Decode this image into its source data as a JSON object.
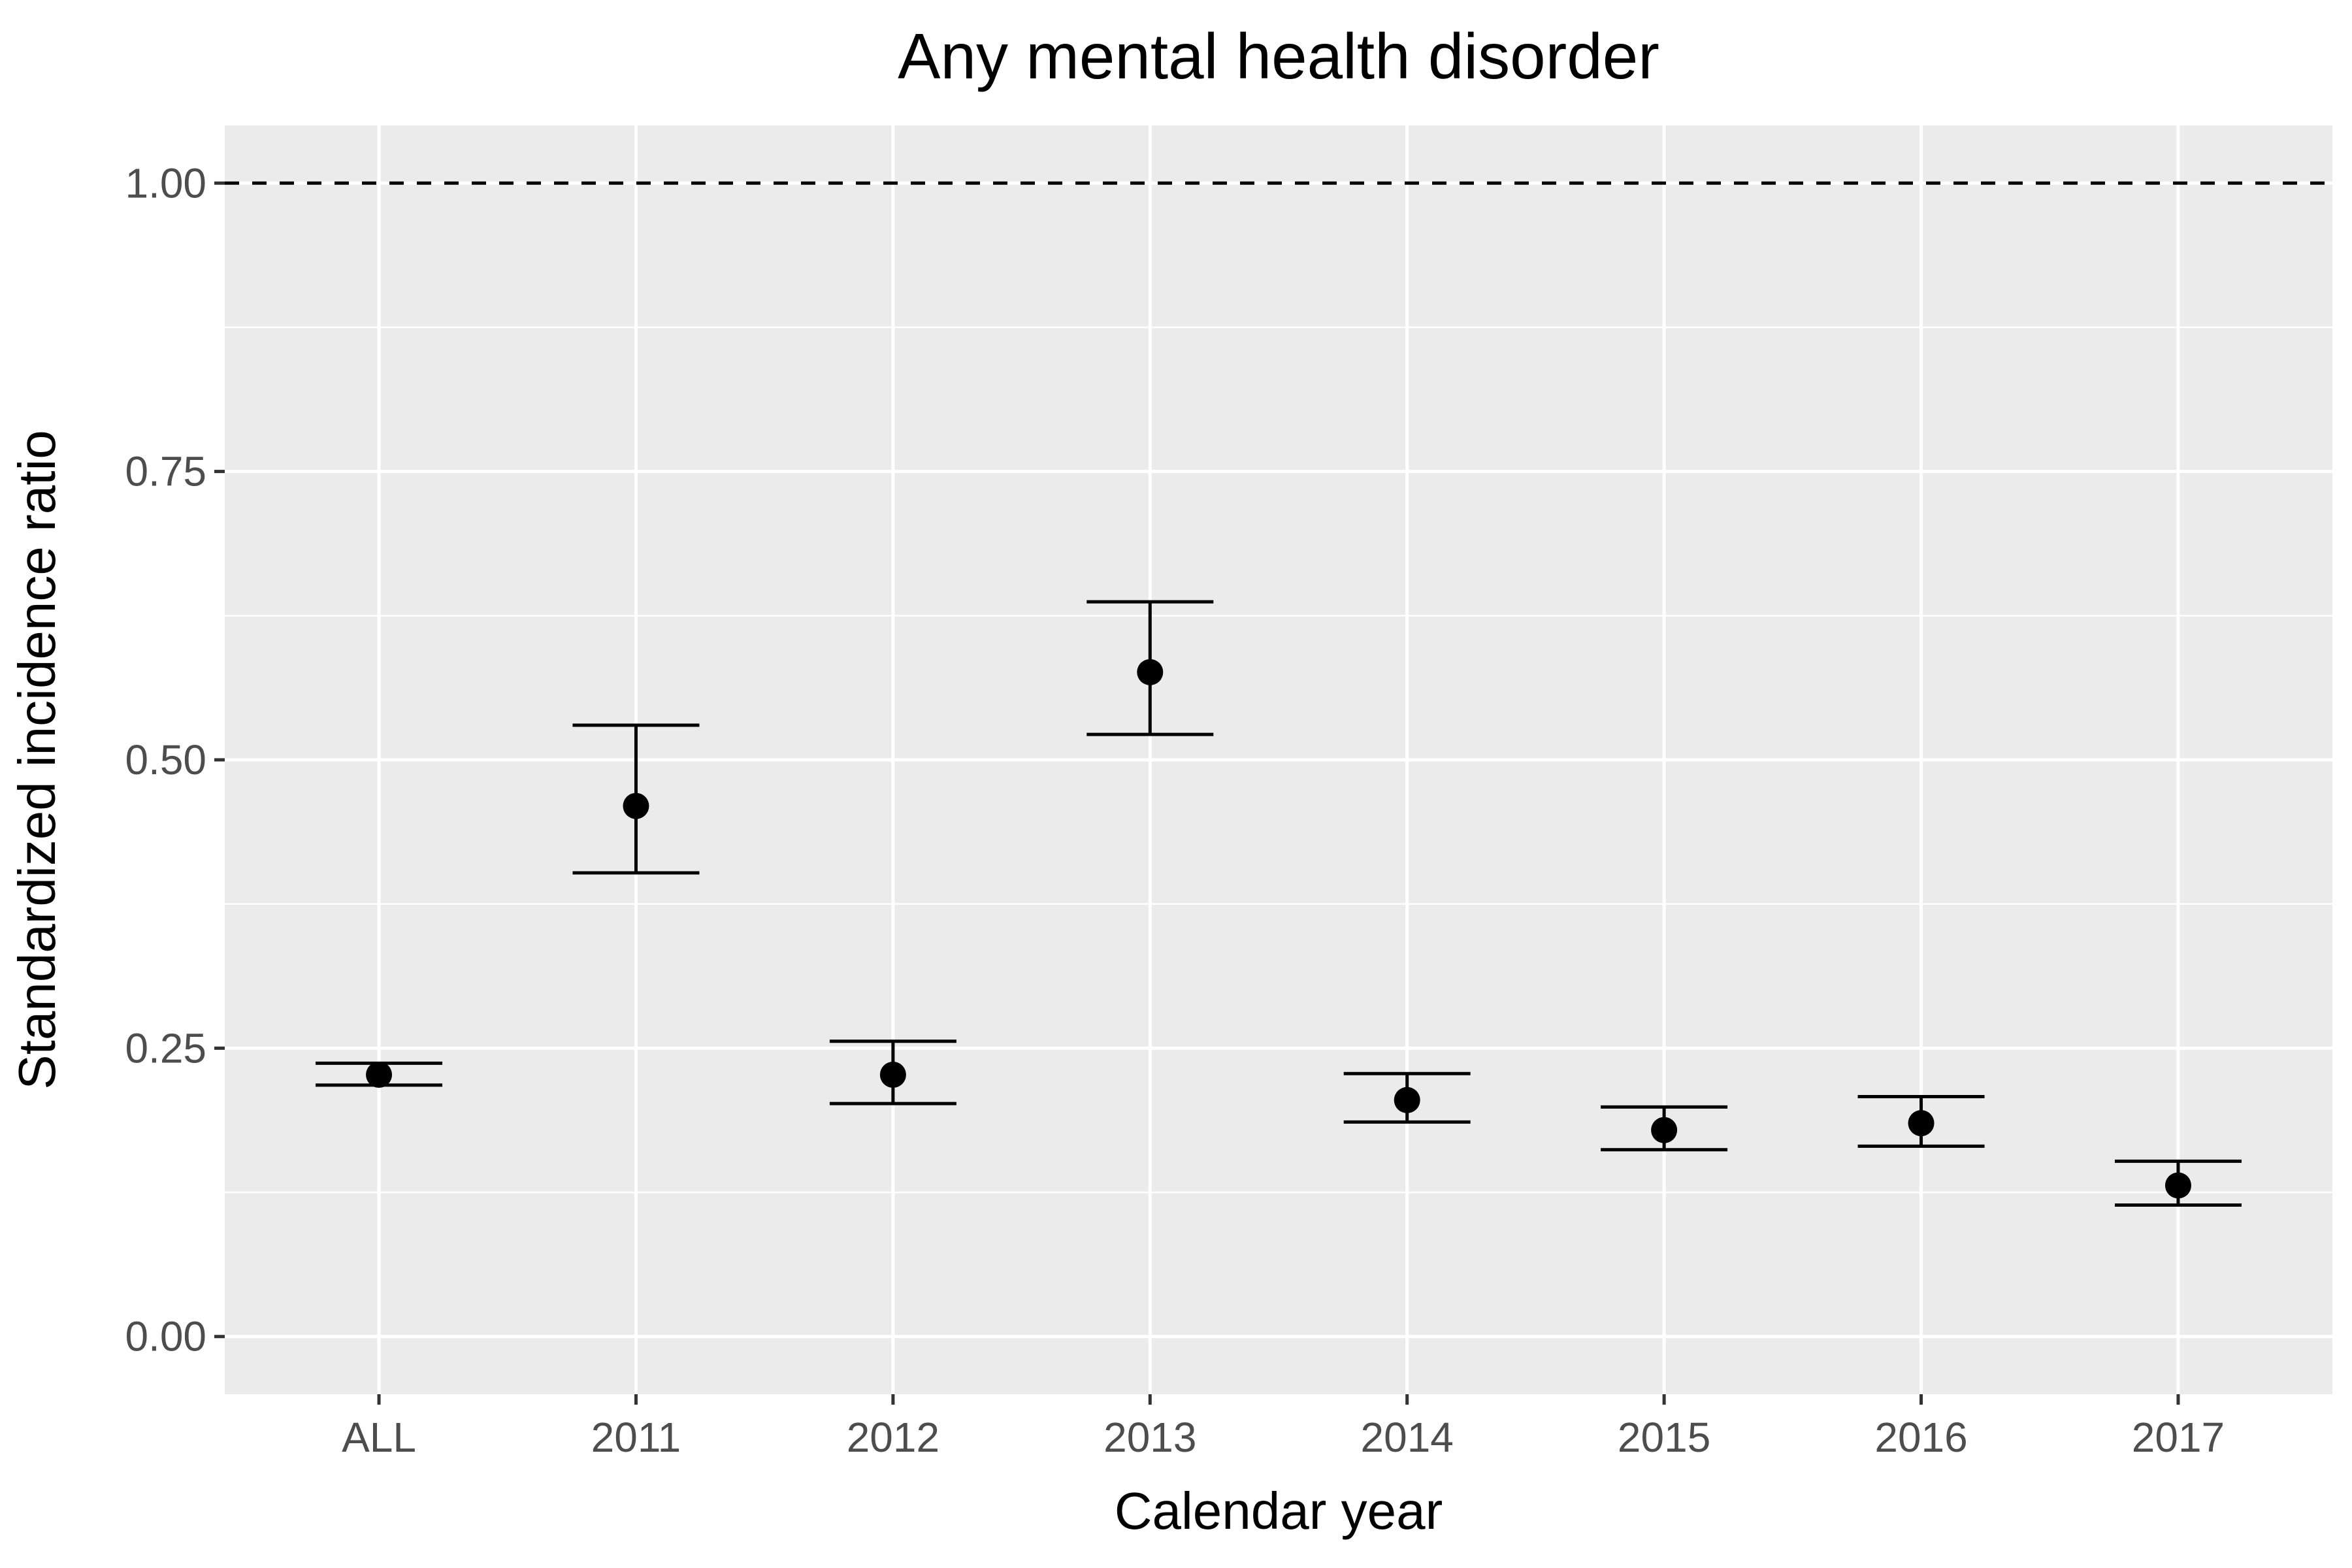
{
  "chart_data": {
    "type": "scatter",
    "title": "Any mental health disorder",
    "xlabel": "Calendar year",
    "ylabel": "Standardized incidence ratio",
    "categories": [
      "ALL",
      "2011",
      "2012",
      "2013",
      "2014",
      "2015",
      "2016",
      "2017"
    ],
    "values": [
      0.227,
      0.46,
      0.227,
      0.576,
      0.205,
      0.179,
      0.185,
      0.131
    ],
    "lower": [
      0.218,
      0.402,
      0.202,
      0.522,
      0.186,
      0.162,
      0.165,
      0.114
    ],
    "upper": [
      0.237,
      0.53,
      0.256,
      0.637,
      0.228,
      0.199,
      0.208,
      0.152
    ],
    "ylim": [
      -0.05,
      1.05
    ],
    "yticks": [
      0.0,
      0.25,
      0.5,
      0.75,
      1.0
    ],
    "ytick_labels": [
      "0.00",
      "0.25",
      "0.50",
      "0.75",
      "1.00"
    ],
    "reference_line": {
      "y": 1.0,
      "style": "dashed"
    },
    "grid": true,
    "background": "#ebebeb",
    "gridline_color": "#ffffff",
    "mark_color": "#000000"
  }
}
